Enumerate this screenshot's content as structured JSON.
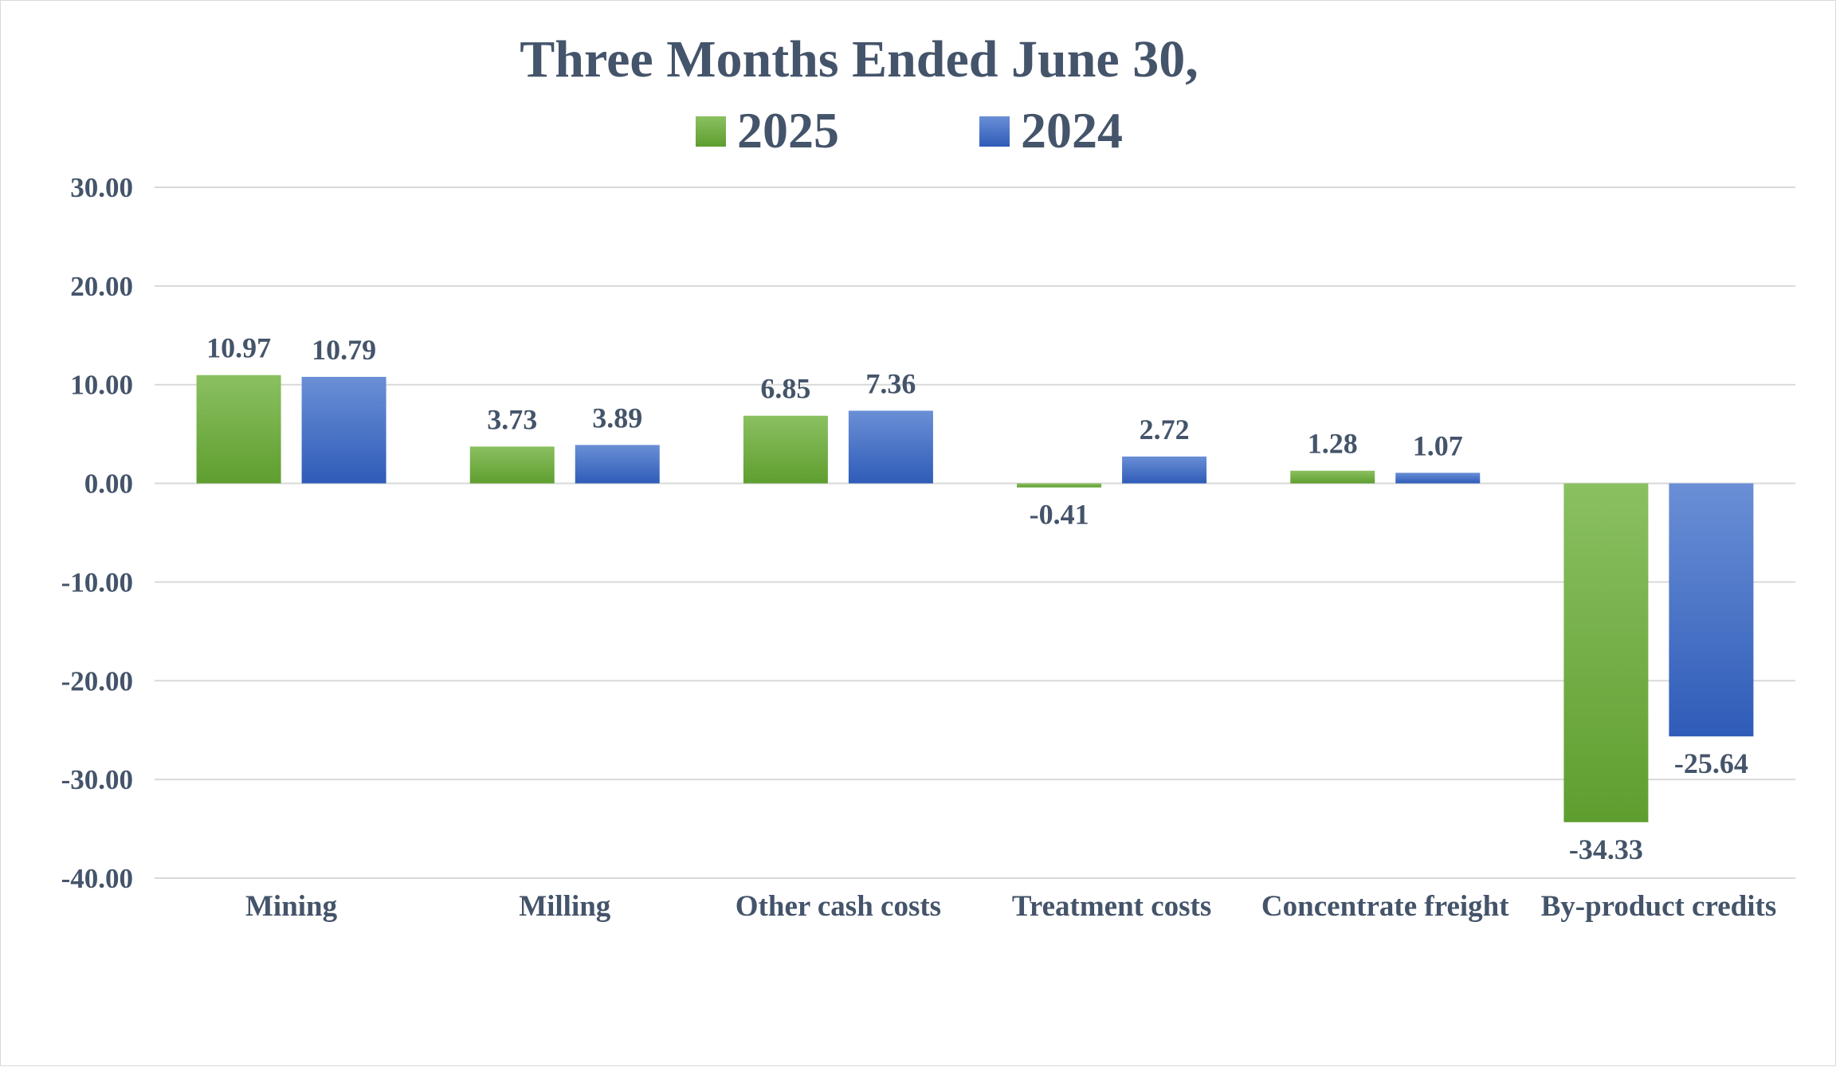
{
  "chart_data": {
    "type": "bar",
    "title": "Three Months Ended June 30,",
    "categories": [
      "Mining",
      "Milling",
      "Other cash costs",
      "Treatment costs",
      "Concentrate freight",
      "By-product credits"
    ],
    "series": [
      {
        "name": "2025",
        "values": [
          10.97,
          3.73,
          6.85,
          -0.41,
          1.28,
          -34.33
        ],
        "labels": [
          "10.97",
          "3.73",
          "6.85",
          "-0.41",
          "1.28",
          "-34.33"
        ],
        "color": "#70ad47",
        "color_light": "#8bc061",
        "color_dark": "#5e9e2f"
      },
      {
        "name": "2024",
        "values": [
          10.79,
          3.89,
          7.36,
          2.72,
          1.07,
          -25.64
        ],
        "labels": [
          "10.79",
          "3.89",
          "7.36",
          "2.72",
          "1.07",
          "-25.64"
        ],
        "color": "#4472c4",
        "color_light": "#6a8fd6",
        "color_dark": "#2f5cb8"
      }
    ],
    "ylim": [
      -40,
      30
    ],
    "yticks": [
      "30.00",
      "20.00",
      "10.00",
      "0.00",
      "-10.00",
      "-20.00",
      "-30.00",
      "-40.00"
    ],
    "ytick_values": [
      30,
      20,
      10,
      0,
      -10,
      -20,
      -30,
      -40
    ],
    "grid": true,
    "legend_position": "top-center",
    "xlabel": "",
    "ylabel": ""
  },
  "colors": {
    "text": "#44546a",
    "grid": "#d9d9d9"
  }
}
